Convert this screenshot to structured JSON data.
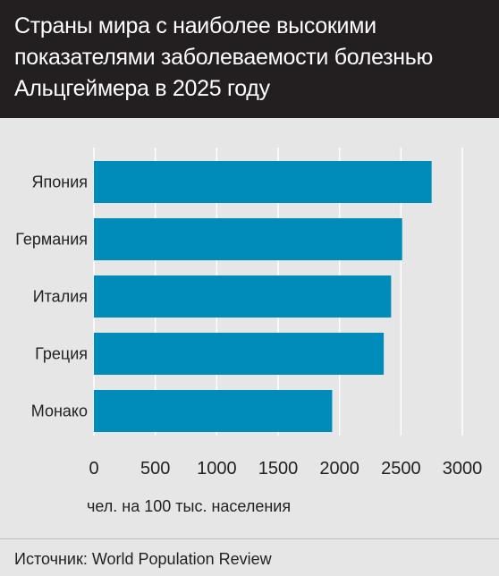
{
  "header": {
    "title": "Страны мира с наиболее высокими\nпоказателями заболеваемости болезнью\nАльцгеймера в 2025 году"
  },
  "chart_data": {
    "type": "bar",
    "orientation": "horizontal",
    "title": "Страны мира с наиболее высокими показателями заболеваемости болезнью Альцгеймера в 2025 году",
    "categories": [
      "Япония",
      "Германия",
      "Италия",
      "Греция",
      "Монако"
    ],
    "values": [
      2750,
      2510,
      2420,
      2360,
      1940
    ],
    "xlabel": "чел. на 100 тыс. населения",
    "ylabel": "",
    "xlim": [
      0,
      3000
    ],
    "xticks": [
      0,
      500,
      1000,
      1500,
      2000,
      2500,
      3000
    ],
    "grid": true,
    "bar_color": "#008cba"
  },
  "footer": {
    "source": "Источник: World Population Review"
  },
  "colors": {
    "header_bg": "#231f20",
    "background": "#e6e6e6",
    "grid": "#ffffff",
    "bar": "#008cba"
  }
}
